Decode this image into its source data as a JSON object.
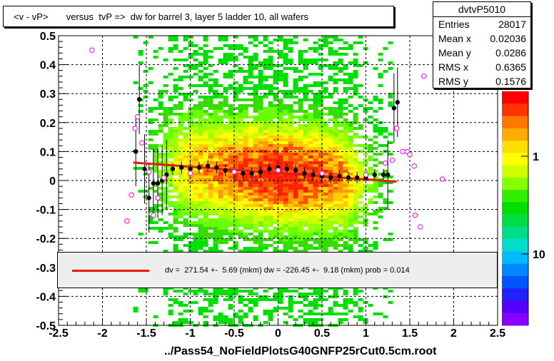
{
  "chart_data": {
    "type": "scatter",
    "title": "<v - vP>       versus  tvP =>  dw for barrel 3, layer 5 ladder 10, all wafers",
    "xlabel": "../Pass54_NoFieldPlotsG40GNFP25rCut0.5cm.root",
    "ylabel": "",
    "xlim": [
      -2.5,
      2.5
    ],
    "ylim": [
      -0.5,
      0.5
    ],
    "grid": true,
    "x_tick_labels": [
      "-2.5",
      "-2",
      "-1.5",
      "-1",
      "-0.5",
      "0",
      "0.5",
      "1",
      "1.5",
      "2",
      "2.5"
    ],
    "y_tick_labels": [
      "-0.5",
      "-0.4",
      "-0.3",
      "-0.2",
      "-0.1",
      "0",
      "0.1",
      "0.2",
      "0.3",
      "0.4",
      "0.5"
    ],
    "colorbar_tick_labels": [
      "1",
      "10"
    ],
    "stats": {
      "name": "dvtvP5010",
      "rows": [
        {
          "key": "Entries",
          "value": "28017"
        },
        {
          "key": "Mean x",
          "value": "0.02036"
        },
        {
          "key": "Mean y",
          "value": "0.0286"
        },
        {
          "key": "RMS x",
          "value": "0.6365"
        },
        {
          "key": "RMS y",
          "value": "0.1576"
        }
      ]
    },
    "fit_text": "dv =  271.54 +-  5.69 (mkm) dw = -226.45 +-  9.18 (mkm) prob = 0.014",
    "fit_line": {
      "x": [
        -1.65,
        1.35
      ],
      "y": [
        0.062,
        -0.004
      ]
    },
    "profile_mean": [
      {
        "x": -1.62,
        "y": 0.1
      },
      {
        "x": -1.58,
        "y": 0.28
      },
      {
        "x": -1.52,
        "y": 0.04
      },
      {
        "x": -1.47,
        "y": -0.06
      },
      {
        "x": -1.42,
        "y": -0.01
      },
      {
        "x": -1.37,
        "y": -0.01
      },
      {
        "x": -1.32,
        "y": 0.0
      },
      {
        "x": -1.27,
        "y": 0.02
      },
      {
        "x": -1.2,
        "y": 0.04
      },
      {
        "x": -1.1,
        "y": 0.045
      },
      {
        "x": -1.0,
        "y": 0.04
      },
      {
        "x": -0.9,
        "y": 0.045
      },
      {
        "x": -0.8,
        "y": 0.05
      },
      {
        "x": -0.7,
        "y": 0.045
      },
      {
        "x": -0.6,
        "y": 0.035
      },
      {
        "x": -0.5,
        "y": 0.03
      },
      {
        "x": -0.4,
        "y": 0.025
      },
      {
        "x": -0.3,
        "y": 0.025
      },
      {
        "x": -0.2,
        "y": 0.03
      },
      {
        "x": -0.1,
        "y": 0.04
      },
      {
        "x": 0.0,
        "y": 0.045
      },
      {
        "x": 0.1,
        "y": 0.04
      },
      {
        "x": 0.2,
        "y": 0.035
      },
      {
        "x": 0.3,
        "y": 0.025
      },
      {
        "x": 0.4,
        "y": 0.02
      },
      {
        "x": 0.5,
        "y": 0.015
      },
      {
        "x": 0.6,
        "y": 0.01
      },
      {
        "x": 0.7,
        "y": 0.015
      },
      {
        "x": 0.8,
        "y": 0.01
      },
      {
        "x": 0.9,
        "y": 0.01
      },
      {
        "x": 1.0,
        "y": 0.01
      },
      {
        "x": 1.1,
        "y": 0.02
      },
      {
        "x": 1.2,
        "y": 0.02
      },
      {
        "x": 1.25,
        "y": 0.02
      },
      {
        "x": 1.32,
        "y": 0.25
      },
      {
        "x": 1.36,
        "y": 0.27
      }
    ],
    "profile_rms_markers": [
      {
        "x": -2.12,
        "y": 0.45
      },
      {
        "x": -1.72,
        "y": -0.14
      },
      {
        "x": -1.67,
        "y": -0.05
      },
      {
        "x": -1.63,
        "y": 0.18
      },
      {
        "x": -1.6,
        "y": 0.22
      },
      {
        "x": -1.55,
        "y": 0.13
      },
      {
        "x": -1.47,
        "y": 0.03
      },
      {
        "x": -1.42,
        "y": -0.12
      },
      {
        "x": -1.37,
        "y": -0.06
      },
      {
        "x": -1.3,
        "y": 0.01
      },
      {
        "x": -1.0,
        "y": 0.025
      },
      {
        "x": -0.5,
        "y": 0.03
      },
      {
        "x": 0.0,
        "y": 0.035
      },
      {
        "x": 0.5,
        "y": 0.025
      },
      {
        "x": 1.0,
        "y": 0.02
      },
      {
        "x": 1.22,
        "y": 0.06
      },
      {
        "x": 1.3,
        "y": 0.07
      },
      {
        "x": 1.35,
        "y": 0.18
      },
      {
        "x": 1.42,
        "y": 0.1
      },
      {
        "x": 1.47,
        "y": 0.1
      },
      {
        "x": 1.5,
        "y": 0.09
      },
      {
        "x": 1.55,
        "y": 0.05
      },
      {
        "x": 1.56,
        "y": -0.12
      },
      {
        "x": 1.62,
        "y": -0.16
      },
      {
        "x": 1.66,
        "y": 0.36
      },
      {
        "x": 1.87,
        "y": 0.005
      }
    ]
  }
}
